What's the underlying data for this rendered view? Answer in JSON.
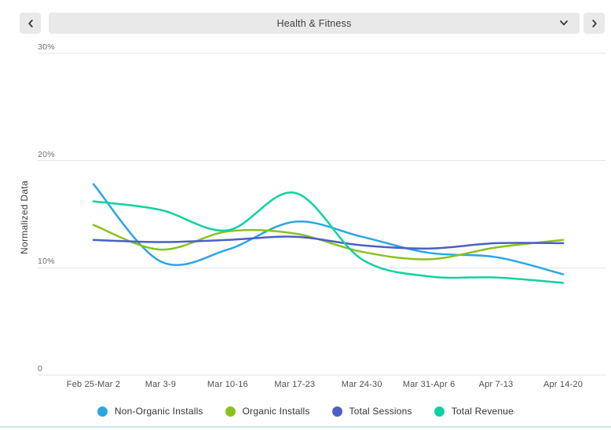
{
  "header": {
    "category_selector": {
      "value": "Health & Fitness"
    },
    "prev_icon": "chevron-left",
    "next_icon": "chevron-right",
    "dropdown_icon": "chevron-down"
  },
  "chart_data": {
    "type": "line",
    "title": "",
    "ylabel": "Normalized Data",
    "xlabel": "",
    "ylim": [
      0,
      30
    ],
    "grid": "horizontal",
    "legend_position": "bottom",
    "yticks": [
      {
        "value": 0,
        "label": "0"
      },
      {
        "value": 10,
        "label": "10%"
      },
      {
        "value": 20,
        "label": "20%"
      },
      {
        "value": 30,
        "label": "30%"
      }
    ],
    "categories": [
      "Feb 25-Mar 2",
      "Mar 3-9",
      "Mar 10-16",
      "Mar 17-23",
      "Mar 24-30",
      "Mar 31-Apr 6",
      "Apr 7-13",
      "Apr 14-20"
    ],
    "series": [
      {
        "name": "Non-Organic Installs",
        "color": "#2ca6e0",
        "values": [
          17.8,
          10.6,
          11.7,
          14.3,
          12.9,
          11.4,
          11.0,
          9.4
        ]
      },
      {
        "name": "Organic Installs",
        "color": "#8bc11e",
        "values": [
          14.0,
          11.7,
          13.4,
          13.2,
          11.5,
          10.8,
          11.9,
          12.6
        ]
      },
      {
        "name": "Total Sessions",
        "color": "#4b5fc5",
        "values": [
          12.6,
          12.4,
          12.6,
          12.9,
          12.1,
          11.8,
          12.3,
          12.3
        ]
      },
      {
        "name": "Total Revenue",
        "color": "#0fd2a0",
        "values": [
          16.2,
          15.4,
          13.5,
          17.0,
          10.8,
          9.2,
          9.1,
          8.6
        ]
      }
    ]
  },
  "colors": {
    "control_bg": "#e9e9e9",
    "gridline": "#e3e3e3",
    "divider": "#cfe3f1"
  }
}
